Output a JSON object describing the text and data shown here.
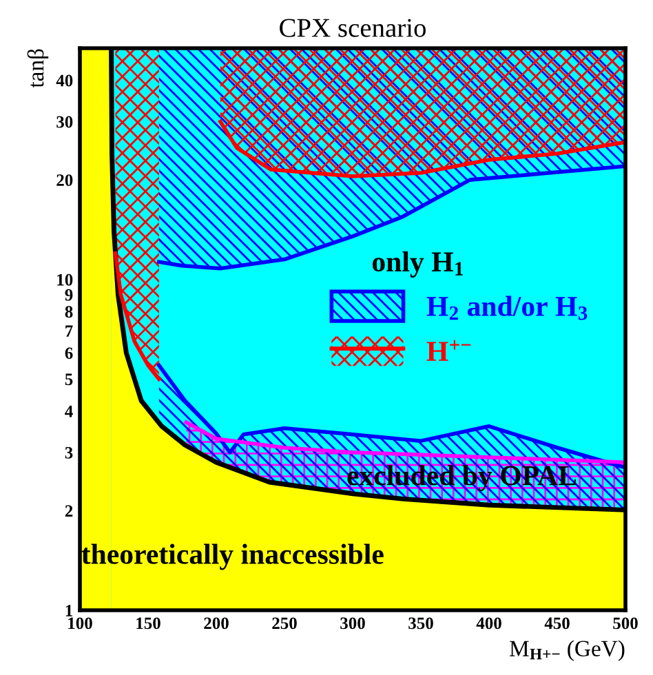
{
  "chart_data": {
    "type": "area",
    "title": "CPX scenario",
    "xlabel": "M$_{H+−}$ (GeV)",
    "ylabel": "tanβ",
    "log": "y",
    "xlim": [
      100,
      500
    ],
    "ylim": [
      1,
      50
    ],
    "xticks": [
      100,
      150,
      200,
      250,
      300,
      350,
      400,
      450,
      500
    ],
    "yticks": [
      1,
      2,
      3,
      4,
      5,
      6,
      7,
      8,
      9,
      10,
      20,
      30,
      40
    ],
    "legend": "right",
    "bands": [
      {
        "axis": "y",
        "from": 1,
        "to": 50,
        "color": "#00ffff"
      },
      {
        "axis": "x",
        "from": 100,
        "to": 123,
        "color": "#ffff00"
      }
    ],
    "series": [
      {
        "name": "H$_{2}$ and/or H$_{3}$",
        "color": "#0000ff",
        "x": [
          158,
          177,
          200,
          210,
          220,
          250,
          300,
          350,
          400,
          450,
          500
        ],
        "values": [
          5.5,
          4.3,
          3.42,
          3.0,
          3.4,
          3.55,
          3.4,
          3.25,
          3.6,
          3.1,
          2.7
        ]
      },
      {
        "color": "#ff00ff",
        "x": [
          178,
          200,
          250,
          300,
          350,
          400,
          450,
          500
        ],
        "values": [
          3.7,
          3.3,
          3.1,
          3.0,
          2.95,
          2.9,
          2.85,
          2.8
        ]
      },
      {
        "color": "#ffff00",
        "x": [
          123,
          123.5,
          125,
          128,
          134,
          145,
          160,
          177,
          200,
          239,
          300,
          337,
          400,
          500
        ],
        "values": [
          50,
          24,
          14,
          9,
          6,
          4.3,
          3.6,
          3.16,
          2.8,
          2.44,
          2.25,
          2.17,
          2.08,
          2.01
        ]
      },
      {
        "type": "line",
        "color": "#0000ff",
        "x": [
          158,
          175,
          203,
          250,
          300,
          337,
          386,
          500
        ],
        "values": [
          11.3,
          11,
          10.8,
          11.5,
          13.5,
          15.5,
          20,
          22
        ],
        "lower": [
          11.3,
          11,
          10.8,
          11.5,
          13.5,
          15.5,
          20,
          22
        ],
        "upper": [
          50,
          50,
          50,
          50,
          50,
          50,
          50,
          50
        ]
      },
      {
        "type": "line",
        "name": "H$^{+−}$",
        "color": "#ff0000",
        "x": [
          203,
          215,
          240,
          300,
          350,
          400,
          450,
          500
        ],
        "values": [
          30,
          25,
          21.5,
          20.5,
          21,
          23,
          24,
          26
        ],
        "lower": [
          30,
          25,
          21.5,
          20.5,
          21,
          23,
          24,
          26
        ],
        "upper": [
          50,
          50,
          50,
          50,
          50,
          50,
          50,
          50
        ]
      },
      {
        "type": "line",
        "color": "#ff0000",
        "x": [
          126,
          130,
          140,
          150,
          158
        ],
        "values": [
          12,
          9,
          6.5,
          5.5,
          5
        ],
        "lower": [
          12,
          9,
          6.5,
          5.5,
          5
        ],
        "upper": [
          50,
          50,
          50,
          50,
          50
        ]
      }
    ],
    "annotations": [
      "only H$_{1}$",
      "excluded by OPAL",
      "theoretically inaccessible"
    ]
  }
}
